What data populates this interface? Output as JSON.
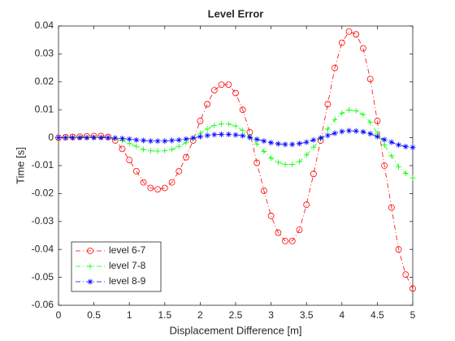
{
  "chart_data": {
    "type": "line",
    "title": "Level Error",
    "x_label": "Displacement Difference [m]",
    "y_label": "Time [s]",
    "x": [
      0,
      0.1,
      0.2,
      0.3,
      0.4,
      0.5,
      0.6,
      0.7,
      0.8,
      0.9,
      1,
      1.1,
      1.2,
      1.3,
      1.4,
      1.5,
      1.6,
      1.7,
      1.8,
      1.9,
      2,
      2.1,
      2.2,
      2.3,
      2.4,
      2.5,
      2.6,
      2.7,
      2.8,
      2.9,
      3,
      3.1,
      3.2,
      3.3,
      3.4,
      3.5,
      3.6,
      3.7,
      3.8,
      3.9,
      4,
      4.1,
      4.2,
      4.3,
      4.4,
      4.5,
      4.6,
      4.7,
      4.8,
      4.9,
      5
    ],
    "series": [
      {
        "name": "level 6-7",
        "color": "#ff0000",
        "marker": "o",
        "values": [
          0,
          0.0002,
          0.0003,
          0.0004,
          0.0005,
          0.0006,
          0.0006,
          0.0003,
          -0.001,
          -0.004,
          -0.008,
          -0.012,
          -0.016,
          -0.018,
          -0.0185,
          -0.018,
          -0.016,
          -0.012,
          -0.007,
          -0.001,
          0.006,
          0.012,
          0.017,
          0.019,
          0.019,
          0.016,
          0.01,
          0.002,
          -0.009,
          -0.019,
          -0.028,
          -0.034,
          -0.037,
          -0.037,
          -0.033,
          -0.024,
          -0.013,
          -0.001,
          0.012,
          0.025,
          0.034,
          0.038,
          0.037,
          0.032,
          0.021,
          0.006,
          -0.01,
          -0.025,
          -0.04,
          -0.049,
          -0.054
        ]
      },
      {
        "name": "level 7-8",
        "color": "#00ff00",
        "marker": "+",
        "values": [
          0,
          0.0001,
          0.0001,
          0.0001,
          0.0001,
          0.0001,
          0.0001,
          0,
          -0.0003,
          -0.001,
          -0.0021,
          -0.0031,
          -0.0042,
          -0.0047,
          -0.0048,
          -0.0047,
          -0.0042,
          -0.0031,
          -0.0018,
          -0.0003,
          0.0016,
          0.0031,
          0.0044,
          0.0049,
          0.0049,
          0.0042,
          0.0026,
          0.0005,
          -0.0023,
          -0.0049,
          -0.0073,
          -0.0088,
          -0.0096,
          -0.0096,
          -0.0086,
          -0.0062,
          -0.0034,
          -0.0003,
          0.0031,
          0.0065,
          0.0088,
          0.0099,
          0.0096,
          0.0083,
          0.0055,
          0.0016,
          -0.0026,
          -0.0065,
          -0.0104,
          -0.0127,
          -0.0144
        ]
      },
      {
        "name": "level 8-9",
        "color": "#0000ff",
        "marker": "*",
        "values": [
          0,
          0,
          0,
          0,
          0,
          0,
          0,
          0,
          -0.0001,
          -0.0003,
          -0.0005,
          -0.0008,
          -0.001,
          -0.0012,
          -0.0012,
          -0.0012,
          -0.001,
          -0.0008,
          -0.0005,
          -0.0001,
          0.0004,
          0.0008,
          0.0011,
          0.0012,
          0.0012,
          0.001,
          0.0007,
          0.0001,
          -0.0006,
          -0.0012,
          -0.0018,
          -0.0022,
          -0.0024,
          -0.0024,
          -0.0021,
          -0.0016,
          -0.0008,
          -0.0001,
          0.0008,
          0.0016,
          0.0022,
          0.0025,
          0.0024,
          0.0021,
          0.0014,
          0.0004,
          -0.0007,
          -0.0016,
          -0.0026,
          -0.0032,
          -0.0035
        ]
      }
    ],
    "xlim": [
      0,
      5
    ],
    "xticks": [
      0,
      0.5,
      1,
      1.5,
      2,
      2.5,
      3,
      3.5,
      4,
      4.5,
      5
    ],
    "ylim": [
      -0.06,
      0.04
    ],
    "yticks": [
      -0.06,
      -0.05,
      -0.04,
      -0.03,
      -0.02,
      -0.01,
      0,
      0.01,
      0.02,
      0.03,
      0.04
    ],
    "grid": false,
    "legend": "lower left"
  }
}
